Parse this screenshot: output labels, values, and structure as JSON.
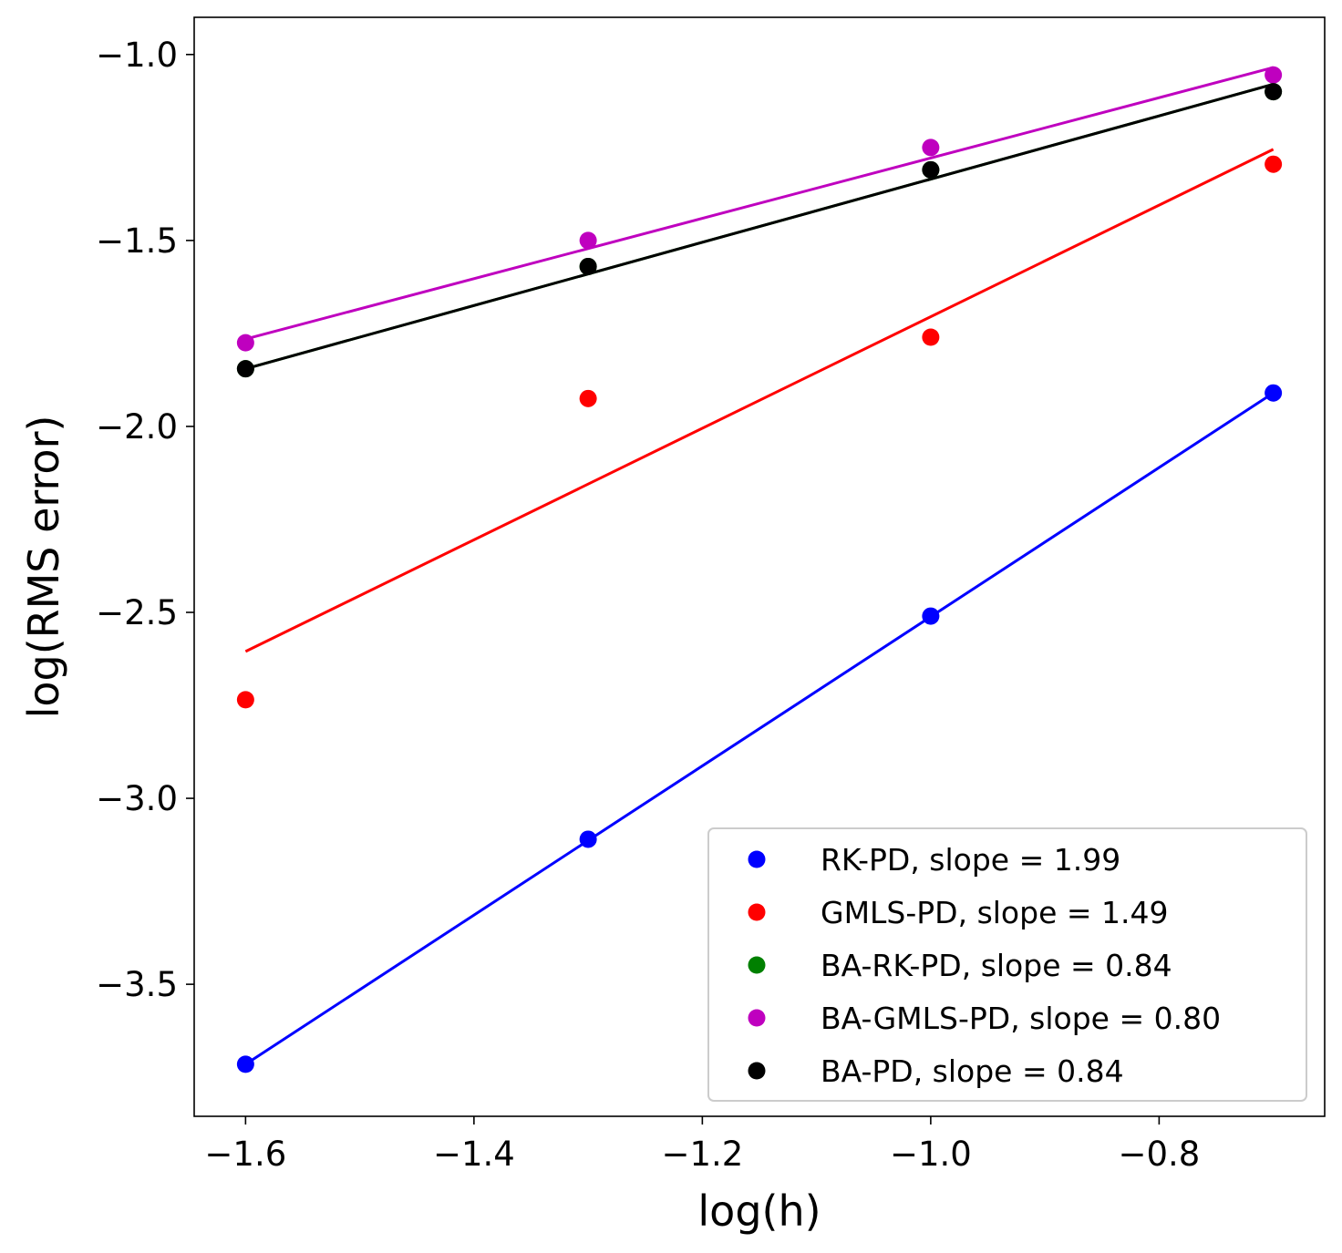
{
  "chart_data": {
    "type": "scatter",
    "title": "",
    "xlabel": "log(h)",
    "ylabel": "log(RMS error)",
    "xlim": [
      -1.645,
      -0.655
    ],
    "ylim": [
      -3.855,
      -0.9
    ],
    "xticks": [
      -1.6,
      -1.4,
      -1.2,
      -1.0,
      -0.8
    ],
    "xtick_labels": [
      "−1.6",
      "−1.4",
      "−1.2",
      "−1.0",
      "−0.8"
    ],
    "yticks": [
      -1.0,
      -1.5,
      -2.0,
      -2.5,
      -3.0,
      -3.5
    ],
    "ytick_labels": [
      "−1.0",
      "−1.5",
      "−2.0",
      "−2.5",
      "−3.0",
      "−3.5"
    ],
    "grid": false,
    "legend_position": "lower-right",
    "series": [
      {
        "name": "RK-PD, slope = 1.99",
        "color": "#0000ff",
        "x": [
          -1.6,
          -1.3,
          -1.0,
          -0.7
        ],
        "y": [
          -3.715,
          -3.11,
          -2.51,
          -1.91
        ],
        "fit": [
          [
            -1.6,
            -3.715
          ],
          [
            -0.7,
            -1.91
          ]
        ]
      },
      {
        "name": "GMLS-PD, slope = 1.49",
        "color": "#ff0000",
        "x": [
          -1.6,
          -1.3,
          -1.0,
          -0.7
        ],
        "y": [
          -2.735,
          -1.925,
          -1.76,
          -1.295
        ],
        "fit": [
          [
            -1.6,
            -2.605
          ],
          [
            -0.7,
            -1.255
          ]
        ]
      },
      {
        "name": "BA-RK-PD, slope = 0.84",
        "color": "#008000",
        "x": [
          -1.6,
          -1.3,
          -1.0,
          -0.7
        ],
        "y": [
          -1.845,
          -1.57,
          -1.31,
          -1.1
        ],
        "fit": [
          [
            -1.6,
            -1.845
          ],
          [
            -0.7,
            -1.08
          ]
        ]
      },
      {
        "name": "BA-GMLS-PD, slope = 0.80",
        "color": "#bf00bf",
        "x": [
          -1.6,
          -1.3,
          -1.0,
          -0.7
        ],
        "y": [
          -1.775,
          -1.5,
          -1.25,
          -1.055
        ],
        "fit": [
          [
            -1.6,
            -1.765
          ],
          [
            -0.7,
            -1.035
          ]
        ]
      },
      {
        "name": "BA-PD, slope = 0.84",
        "color": "#000000",
        "x": [
          -1.6,
          -1.3,
          -1.0,
          -0.7
        ],
        "y": [
          -1.845,
          -1.57,
          -1.31,
          -1.1
        ],
        "fit": [
          [
            -1.6,
            -1.845
          ],
          [
            -0.7,
            -1.08
          ]
        ]
      }
    ]
  }
}
